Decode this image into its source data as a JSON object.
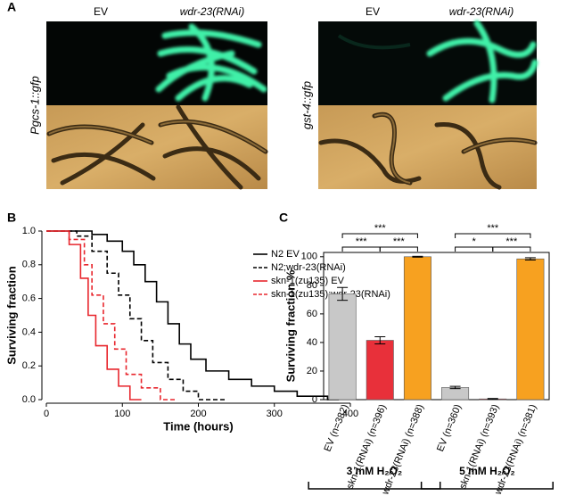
{
  "panel_a": {
    "label": "A",
    "left": {
      "reporter": "Pgcs-1::gfp",
      "columns": [
        "EV",
        "wdr-23(RNAi)"
      ]
    },
    "right": {
      "reporter": "gst-4::gfp",
      "columns": [
        "EV",
        "wdr-23(RNAi)"
      ]
    }
  },
  "chart_data": [
    {
      "type": "line",
      "panel": "B",
      "xlabel": "Time (hours)",
      "ylabel": "Surviving fraction",
      "xlim": [
        0,
        400
      ],
      "xticks": [
        0,
        100,
        200,
        300,
        400
      ],
      "ylim": [
        0,
        1
      ],
      "yticks": [
        {
          "value": 0,
          "label": "0.0"
        },
        0.2,
        0.4,
        0.6,
        0.8,
        {
          "value": 1,
          "label": "1.0"
        }
      ],
      "legend": "top-right",
      "series": [
        {
          "name": "N2 EV",
          "color": "#000000",
          "dashed": false,
          "x": [
            0,
            60,
            60,
            80,
            80,
            100,
            100,
            115,
            115,
            130,
            130,
            145,
            145,
            160,
            160,
            175,
            175,
            190,
            190,
            210,
            210,
            240,
            240,
            270,
            270,
            300,
            300,
            330,
            330,
            370,
            370,
            385
          ],
          "values": [
            1,
            1,
            0.98,
            0.98,
            0.94,
            0.94,
            0.88,
            0.88,
            0.8,
            0.8,
            0.7,
            0.7,
            0.58,
            0.58,
            0.45,
            0.45,
            0.33,
            0.33,
            0.24,
            0.24,
            0.17,
            0.17,
            0.12,
            0.12,
            0.08,
            0.08,
            0.05,
            0.05,
            0.02,
            0.02,
            0,
            0
          ]
        },
        {
          "name": "N2;wdr-23(RNAi)",
          "color": "#000000",
          "dashed": true,
          "x": [
            0,
            40,
            40,
            60,
            60,
            80,
            80,
            95,
            95,
            110,
            110,
            125,
            125,
            140,
            140,
            160,
            160,
            180,
            180,
            200,
            200,
            235
          ],
          "values": [
            1,
            1,
            0.97,
            0.97,
            0.88,
            0.88,
            0.75,
            0.75,
            0.62,
            0.62,
            0.48,
            0.48,
            0.35,
            0.35,
            0.22,
            0.22,
            0.12,
            0.12,
            0.05,
            0.05,
            0,
            0
          ]
        },
        {
          "name": "skn-1(zu135) EV",
          "color": "#e8262d",
          "dashed": false,
          "x": [
            0,
            30,
            30,
            45,
            45,
            55,
            55,
            65,
            65,
            80,
            80,
            95,
            95,
            110,
            110,
            125
          ],
          "values": [
            1,
            1,
            0.92,
            0.92,
            0.72,
            0.72,
            0.5,
            0.5,
            0.32,
            0.32,
            0.18,
            0.18,
            0.08,
            0.08,
            0,
            0
          ]
        },
        {
          "name": "skn-1(zu135);wdr-23(RNAi)",
          "color": "#e8262d",
          "dashed": true,
          "x": [
            0,
            30,
            30,
            50,
            50,
            60,
            60,
            75,
            75,
            90,
            90,
            105,
            105,
            125,
            125,
            150,
            150,
            170
          ],
          "values": [
            1,
            1,
            0.95,
            0.95,
            0.8,
            0.8,
            0.62,
            0.62,
            0.45,
            0.45,
            0.3,
            0.3,
            0.15,
            0.15,
            0.07,
            0.07,
            0,
            0
          ]
        }
      ]
    },
    {
      "type": "bar",
      "panel": "C",
      "ylabel": "Surviving fraction %",
      "categories": [
        "EV (n=382)",
        "skn-1(RNAi) (n=396)",
        "wdr-23(RNAi) (n=388)",
        "EV (n=360)",
        "skn-1(RNAi) (n=393)",
        "wdr-23(RNAi) (n=381)"
      ],
      "values": [
        74,
        41.5,
        100,
        8.5,
        0.5,
        98.5
      ],
      "errors": [
        4.5,
        2.5,
        0.3,
        0.8,
        0.3,
        0.8
      ],
      "colors": [
        "#c8c8c8",
        "#e8303a",
        "#f7a120",
        "#c8c8c8",
        "#e8303a",
        "#f7a120"
      ],
      "ylim": [
        0,
        103
      ],
      "yticks": [
        0,
        20,
        40,
        60,
        80,
        100
      ],
      "significance": [
        {
          "between": [
            0,
            1
          ],
          "label": "***"
        },
        {
          "between": [
            1,
            2
          ],
          "label": "***"
        },
        {
          "between": [
            0,
            2
          ],
          "label": "***"
        },
        {
          "between": [
            3,
            4
          ],
          "label": "*"
        },
        {
          "between": [
            4,
            5
          ],
          "label": "***"
        },
        {
          "between": [
            3,
            5
          ],
          "label": "***"
        }
      ],
      "groups": [
        {
          "label": "3 mM H₂O₂",
          "span": [
            0,
            2
          ]
        },
        {
          "label": "5 mM H₂O₂",
          "span": [
            3,
            5
          ]
        }
      ]
    }
  ]
}
